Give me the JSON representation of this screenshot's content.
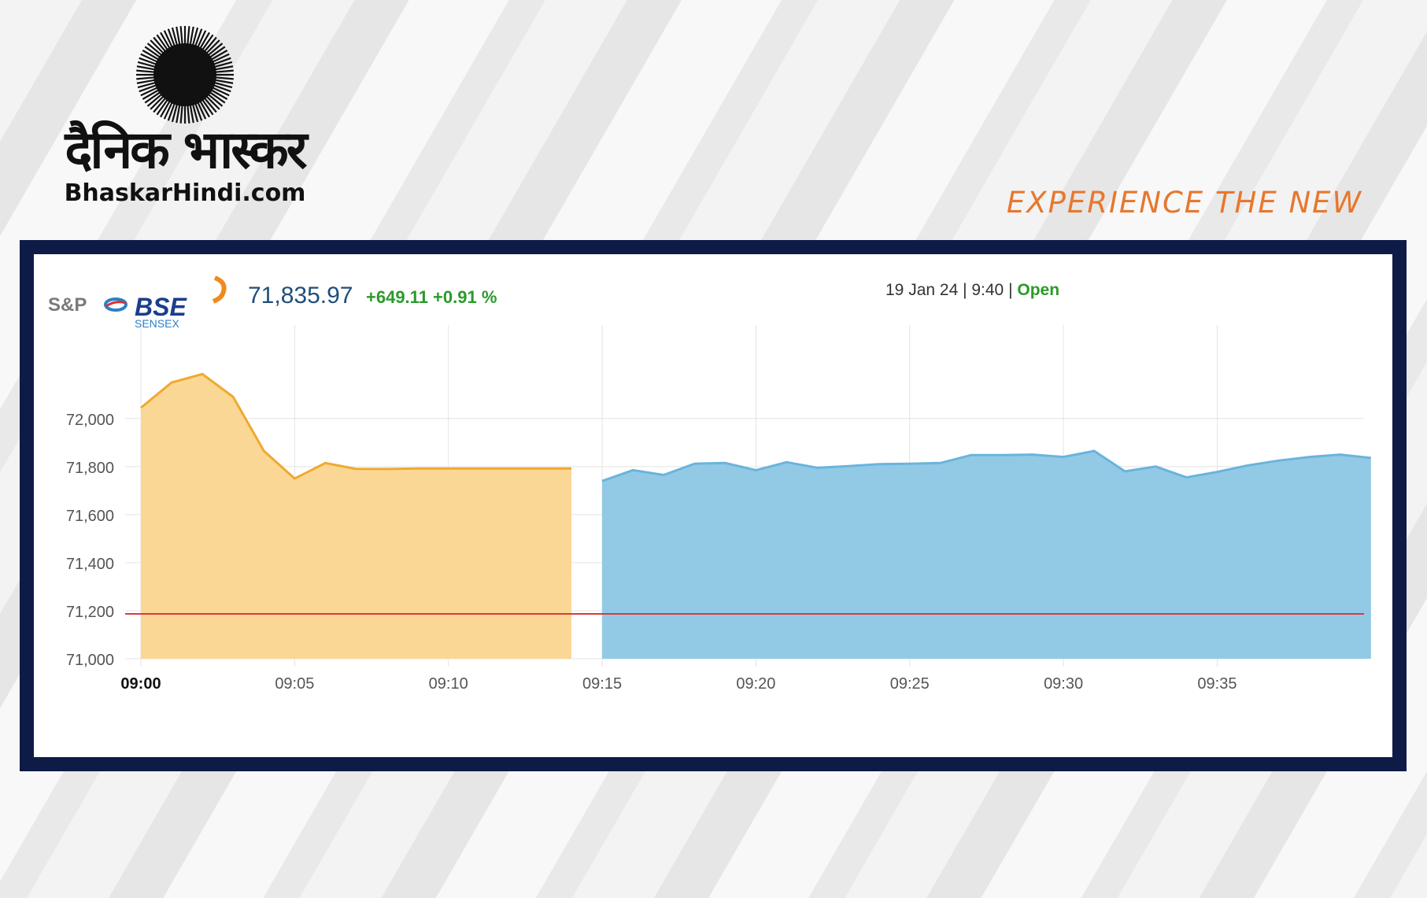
{
  "brand_left": {
    "name": "दैनिक भास्कर",
    "url": "BhaskarHindi.com",
    "icon": "sun-icon"
  },
  "brand_right": {
    "name": "BSE",
    "tagline": "EXPERIENCE THE NEW",
    "colors": {
      "letters": "#1a8bd6",
      "tagline": "#e8772e"
    }
  },
  "widget": {
    "index_logo": {
      "prefix": "S&P",
      "name": "BSE",
      "sub": "SENSEX"
    },
    "price": "71,835.97",
    "change": "+649.11 +0.91 %",
    "datetime": "19 Jan 24 | 9:40 | ",
    "status": "Open",
    "colors": {
      "price": "#1f4e79",
      "change": "#2a9a2a",
      "status": "#2a9a2a"
    }
  },
  "chart_data": {
    "type": "area",
    "x_unit": "time",
    "xticks": [
      "09:00",
      "09:05",
      "09:10",
      "09:15",
      "09:20",
      "09:25",
      "09:30",
      "09:35"
    ],
    "yticks": [
      "72,000",
      "71,800",
      "71,600",
      "71,400",
      "71,200",
      "71,000"
    ],
    "ylim": [
      71000,
      72200
    ],
    "grid": true,
    "reference_line": {
      "y": 71186.86,
      "color": "#d93a3a"
    },
    "series": [
      {
        "segment": "pre-open",
        "color": "#f0a92e",
        "fill": "#fbd796",
        "points": [
          [
            "09:00",
            72045
          ],
          [
            "09:01",
            72150
          ],
          [
            "09:02",
            72185
          ],
          [
            "09:03",
            72090
          ],
          [
            "09:04",
            71865
          ],
          [
            "09:05",
            71750
          ],
          [
            "09:06",
            71815
          ],
          [
            "09:07",
            71790
          ],
          [
            "09:08",
            71790
          ],
          [
            "09:09",
            71792
          ],
          [
            "09:10",
            71792
          ],
          [
            "09:11",
            71792
          ],
          [
            "09:12",
            71792
          ],
          [
            "09:13",
            71792
          ],
          [
            "09:14",
            71792
          ]
        ]
      },
      {
        "segment": "regular",
        "color": "#6ab4dc",
        "fill": "#92cae6",
        "points": [
          [
            "09:15",
            71740
          ],
          [
            "09:16",
            71785
          ],
          [
            "09:17",
            71765
          ],
          [
            "09:18",
            71812
          ],
          [
            "09:19",
            71815
          ],
          [
            "09:20",
            71785
          ],
          [
            "09:21",
            71818
          ],
          [
            "09:22",
            71795
          ],
          [
            "09:23",
            71802
          ],
          [
            "09:24",
            71810
          ],
          [
            "09:25",
            71812
          ],
          [
            "09:26",
            71815
          ],
          [
            "09:27",
            71848
          ],
          [
            "09:28",
            71848
          ],
          [
            "09:29",
            71850
          ],
          [
            "09:30",
            71840
          ],
          [
            "09:31",
            71865
          ],
          [
            "09:32",
            71780
          ],
          [
            "09:33",
            71800
          ],
          [
            "09:34",
            71755
          ],
          [
            "09:35",
            71778
          ],
          [
            "09:36",
            71805
          ],
          [
            "09:37",
            71825
          ],
          [
            "09:38",
            71840
          ],
          [
            "09:39",
            71850
          ],
          [
            "09:40",
            71836
          ]
        ]
      }
    ]
  }
}
